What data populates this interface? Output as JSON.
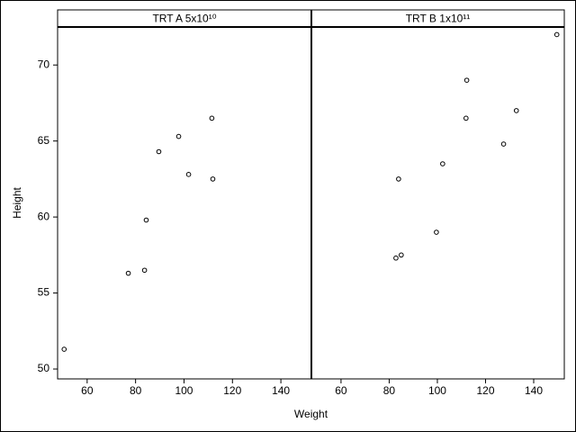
{
  "chart_data": [
    {
      "type": "scatter",
      "title": "TRT A 5x10¹⁰",
      "xlabel": "Weight",
      "ylabel": "Height",
      "x": [
        50.5,
        77,
        83.7,
        84.4,
        89.6,
        97.8,
        101.9,
        111.5,
        111.9
      ],
      "y": [
        51.3,
        56.3,
        56.5,
        59.8,
        64.3,
        65.3,
        62.8,
        66.5,
        62.5
      ],
      "xlim": [
        47.8,
        152.6
      ],
      "ylim": [
        49.35,
        72.5
      ],
      "xticks": [
        60,
        80,
        100,
        120,
        140
      ],
      "yticks": [
        50,
        55,
        60,
        65,
        70
      ],
      "color": "#000000"
    },
    {
      "type": "scatter",
      "title": "TRT B 1x10¹¹",
      "x": [
        149.6,
        112.2,
        132.8,
        111.9,
        127.5,
        102.2,
        83.9,
        99.6,
        82.8,
        85.0
      ],
      "y": [
        72.0,
        69.0,
        67.0,
        66.5,
        64.8,
        63.5,
        62.5,
        59.0,
        57.3,
        57.5
      ],
      "xlim": [
        47.7,
        152.7
      ],
      "ylim": [
        49.35,
        72.5
      ],
      "xticks": [
        60,
        80,
        100,
        120,
        140
      ],
      "color": "#000000"
    }
  ]
}
